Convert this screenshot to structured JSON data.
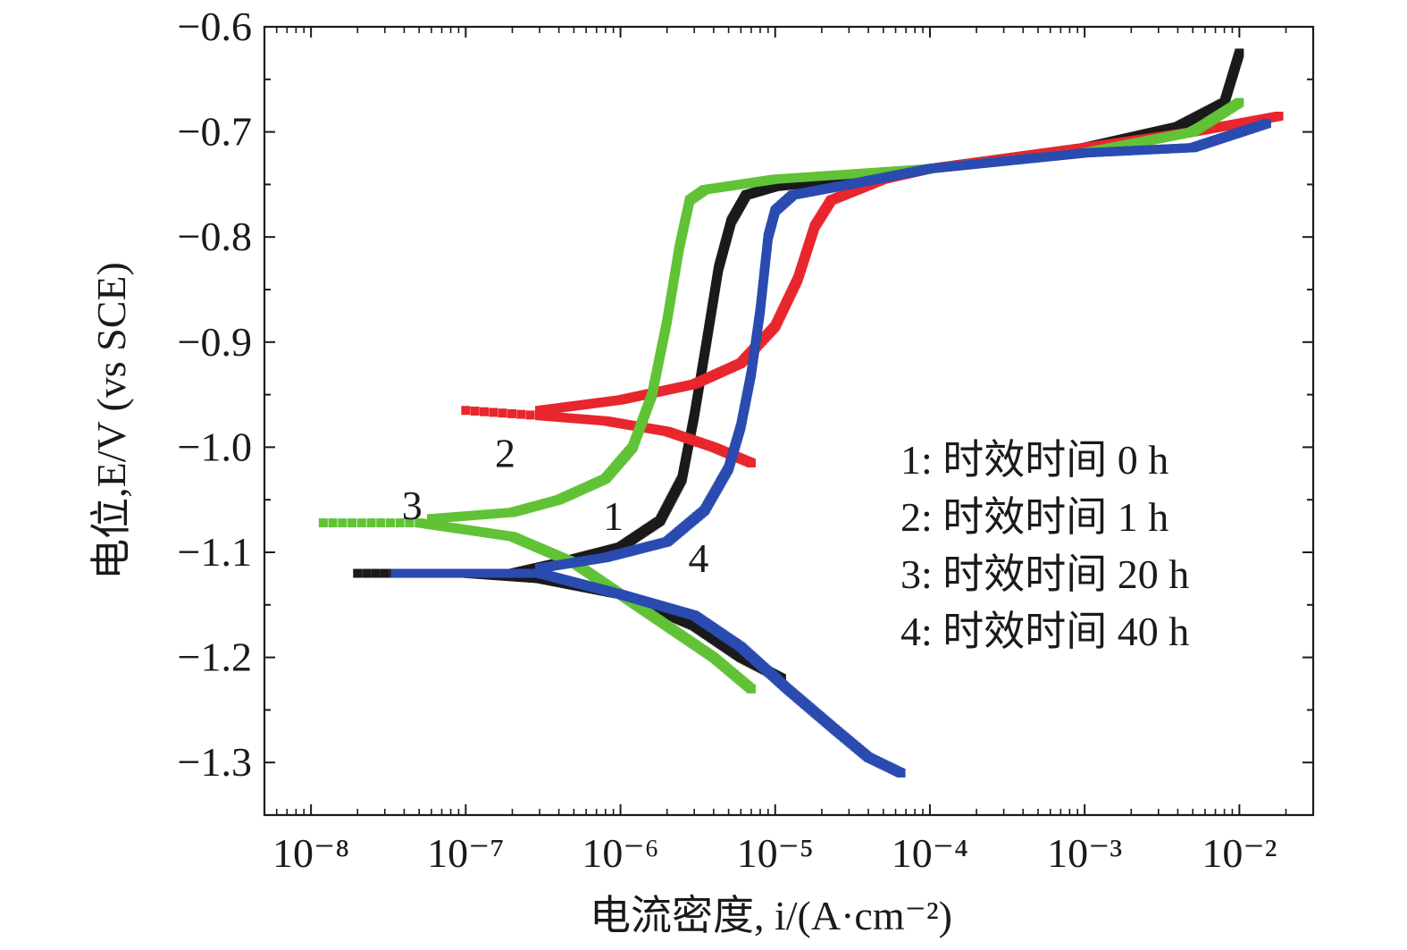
{
  "chart_data": {
    "type": "scatter",
    "x_scale": "log",
    "xlabel": "电流密度, i/(A·cm⁻²)",
    "ylabel": "电位,E/V (vs SCE)",
    "xlim": [
      5e-09,
      0.03
    ],
    "ylim": [
      -1.35,
      -0.6
    ],
    "x_ticks": [
      {
        "value": 1e-08,
        "label": "10⁻⁸"
      },
      {
        "value": 1e-07,
        "label": "10⁻⁷"
      },
      {
        "value": 1e-06,
        "label": "10⁻⁶"
      },
      {
        "value": 1e-05,
        "label": "10⁻⁵"
      },
      {
        "value": 0.0001,
        "label": "10⁻⁴"
      },
      {
        "value": 0.001,
        "label": "10⁻³"
      },
      {
        "value": 0.01,
        "label": "10⁻²"
      }
    ],
    "y_ticks": [
      {
        "value": -0.6,
        "label": "−0.6"
      },
      {
        "value": -0.7,
        "label": "−0.7"
      },
      {
        "value": -0.8,
        "label": "−0.8"
      },
      {
        "value": -0.9,
        "label": "−0.9"
      },
      {
        "value": -1.0,
        "label": "−1.0"
      },
      {
        "value": -1.1,
        "label": "−1.1"
      },
      {
        "value": -1.2,
        "label": "−1.2"
      },
      {
        "value": -1.3,
        "label": "−1.3"
      }
    ],
    "grid": false,
    "legend_position": "right",
    "series": [
      {
        "name": "1: 时效时间 0 h",
        "marker_label": "1",
        "color": "#1a1a1a",
        "cathodic": [
          [
            2e-08,
            -1.12
          ],
          [
            1e-07,
            -1.12
          ],
          [
            3e-07,
            -1.125
          ],
          [
            1e-06,
            -1.14
          ],
          [
            3e-06,
            -1.17
          ],
          [
            6e-06,
            -1.2
          ],
          [
            1.1e-05,
            -1.22
          ]
        ],
        "anodic": [
          [
            2e-07,
            -1.12
          ],
          [
            4e-07,
            -1.11
          ],
          [
            1e-06,
            -1.095
          ],
          [
            1.8e-06,
            -1.07
          ],
          [
            2.5e-06,
            -1.03
          ],
          [
            3e-06,
            -0.97
          ],
          [
            3.6e-06,
            -0.9
          ],
          [
            4.3e-06,
            -0.83
          ],
          [
            5.2e-06,
            -0.785
          ],
          [
            6.5e-06,
            -0.76
          ],
          [
            1e-05,
            -0.752
          ],
          [
            3e-05,
            -0.745
          ],
          [
            0.0001,
            -0.735
          ],
          [
            0.001,
            -0.715
          ],
          [
            0.004,
            -0.695
          ],
          [
            0.008,
            -0.672
          ],
          [
            0.01,
            -0.625
          ]
        ]
      },
      {
        "name": "2: 时效时间 1 h",
        "marker_label": "2",
        "color": "#e8262d",
        "cathodic": [
          [
            1e-07,
            -0.965
          ],
          [
            3e-07,
            -0.97
          ],
          [
            8e-07,
            -0.975
          ],
          [
            2e-06,
            -0.985
          ],
          [
            4e-06,
            -1.0
          ],
          [
            7e-06,
            -1.015
          ]
        ],
        "anodic": [
          [
            3e-07,
            -0.965
          ],
          [
            1e-06,
            -0.955
          ],
          [
            3e-06,
            -0.94
          ],
          [
            6e-06,
            -0.92
          ],
          [
            1e-05,
            -0.885
          ],
          [
            1.4e-05,
            -0.84
          ],
          [
            1.8e-05,
            -0.79
          ],
          [
            2.3e-05,
            -0.765
          ],
          [
            5e-05,
            -0.745
          ],
          [
            0.0001,
            -0.735
          ],
          [
            0.001,
            -0.715
          ],
          [
            0.005,
            -0.7
          ],
          [
            0.018,
            -0.685
          ]
        ]
      },
      {
        "name": "3: 时效时间 20 h",
        "marker_label": "3",
        "color": "#61c236",
        "cathodic": [
          [
            1.2e-08,
            -1.072
          ],
          [
            5e-08,
            -1.072
          ],
          [
            2e-07,
            -1.085
          ],
          [
            5e-07,
            -1.11
          ],
          [
            1e-06,
            -1.14
          ],
          [
            2e-06,
            -1.17
          ],
          [
            4e-06,
            -1.2
          ],
          [
            7e-06,
            -1.23
          ]
        ],
        "anodic": [
          [
            6e-08,
            -1.068
          ],
          [
            2e-07,
            -1.062
          ],
          [
            4e-07,
            -1.05
          ],
          [
            8e-07,
            -1.03
          ],
          [
            1.2e-06,
            -1.0
          ],
          [
            1.6e-06,
            -0.95
          ],
          [
            2e-06,
            -0.88
          ],
          [
            2.4e-06,
            -0.81
          ],
          [
            2.8e-06,
            -0.765
          ],
          [
            3.5e-06,
            -0.755
          ],
          [
            1e-05,
            -0.745
          ],
          [
            0.0001,
            -0.735
          ],
          [
            0.001,
            -0.72
          ],
          [
            0.005,
            -0.7
          ],
          [
            0.01,
            -0.672
          ]
        ]
      },
      {
        "name": "4: 时效时间 40 h",
        "marker_label": "4",
        "color": "#2a4bb0",
        "cathodic": [
          [
            3.5e-08,
            -1.12
          ],
          [
            1e-07,
            -1.12
          ],
          [
            3e-07,
            -1.12
          ],
          [
            1e-06,
            -1.14
          ],
          [
            3e-06,
            -1.16
          ],
          [
            6e-06,
            -1.19
          ],
          [
            1.2e-05,
            -1.23
          ],
          [
            2.5e-05,
            -1.27
          ],
          [
            4e-05,
            -1.295
          ],
          [
            6.5e-05,
            -1.31
          ]
        ],
        "anodic": [
          [
            3e-07,
            -1.115
          ],
          [
            8e-07,
            -1.105
          ],
          [
            2e-06,
            -1.09
          ],
          [
            3.5e-06,
            -1.06
          ],
          [
            5e-06,
            -1.02
          ],
          [
            6e-06,
            -0.98
          ],
          [
            7e-06,
            -0.93
          ],
          [
            8e-06,
            -0.87
          ],
          [
            9e-06,
            -0.8
          ],
          [
            1e-05,
            -0.775
          ],
          [
            1.3e-05,
            -0.76
          ],
          [
            3e-05,
            -0.75
          ],
          [
            0.0001,
            -0.735
          ],
          [
            0.001,
            -0.72
          ],
          [
            0.005,
            -0.715
          ],
          [
            0.015,
            -0.692
          ]
        ]
      }
    ],
    "curve_labels": [
      {
        "text": "1",
        "x": 9e-07,
        "y": -1.065
      },
      {
        "text": "2",
        "x": 1.8e-07,
        "y": -1.005
      },
      {
        "text": "3",
        "x": 4.5e-08,
        "y": -1.055
      },
      {
        "text": "4",
        "x": 3.2e-06,
        "y": -1.105
      }
    ]
  }
}
